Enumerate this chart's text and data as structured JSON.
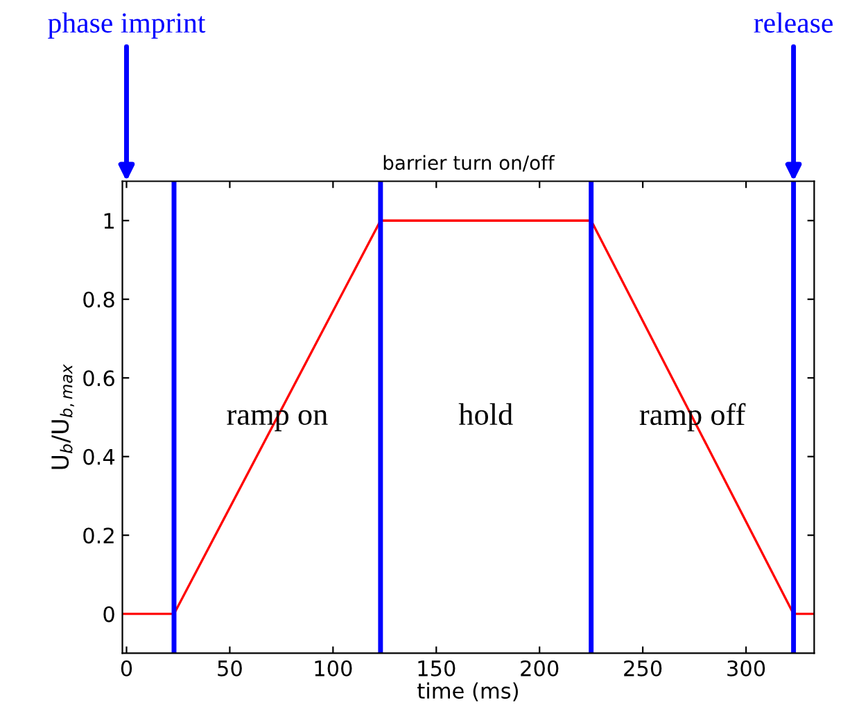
{
  "chart_data": {
    "type": "line",
    "title": "barrier turn on/off",
    "xlabel": "time (ms)",
    "ylabel": "U$_{b}$/U$_{b,max}$",
    "x": [
      -2,
      23,
      123,
      225,
      323,
      333
    ],
    "series": [
      {
        "color": "#ff0000",
        "values": [
          0,
          0,
          1,
          1,
          0,
          0
        ]
      }
    ],
    "xlim": [
      -2,
      333
    ],
    "ylim": [
      -0.1,
      1.1
    ],
    "xticks": [
      0,
      50,
      100,
      150,
      200,
      250,
      300
    ],
    "yticks": [
      0,
      0.2,
      0.4,
      0.6,
      0.8,
      1
    ],
    "ref_lines": [
      {
        "axis": "x",
        "value": 23,
        "color": "#0000ff"
      },
      {
        "axis": "x",
        "value": 123,
        "color": "#0000ff"
      },
      {
        "axis": "x",
        "value": 225,
        "color": "#0000ff"
      },
      {
        "axis": "x",
        "value": 323,
        "color": "#0000ff"
      }
    ],
    "annotations": [
      "phase imprint",
      "release",
      "ramp on",
      "hold",
      "ramp off"
    ],
    "grid": false,
    "legend": false,
    "marker": "none",
    "line_style": "solid"
  }
}
